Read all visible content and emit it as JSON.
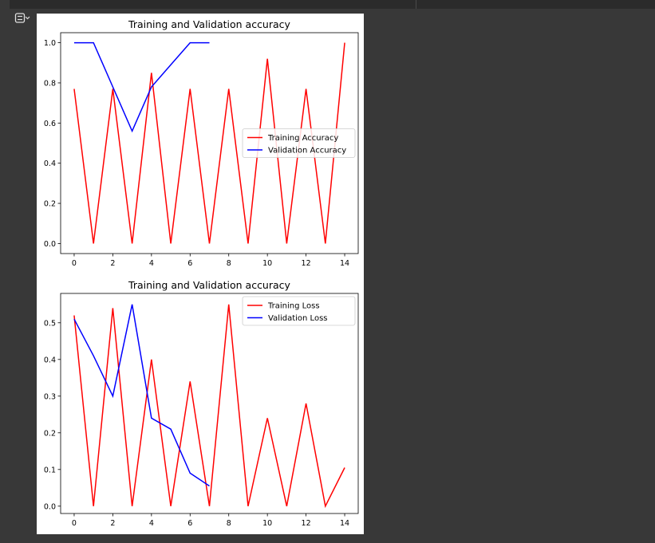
{
  "colors": {
    "background": "#383838",
    "training": "#ff0000",
    "validation": "#0000ff"
  },
  "output_toggle_icon": "output-collapse-icon",
  "chart_data": [
    {
      "type": "line",
      "title": "Training and Validation accuracy",
      "xlabel": "",
      "ylabel": "",
      "xlim": [
        -0.7,
        14.7
      ],
      "ylim": [
        -0.05,
        1.05
      ],
      "xticks": [
        "0",
        "2",
        "4",
        "6",
        "8",
        "10",
        "12",
        "14"
      ],
      "yticks": [
        "0.0",
        "0.2",
        "0.4",
        "0.6",
        "0.8",
        "1.0"
      ],
      "grid": false,
      "legend_position": "center-right",
      "series": [
        {
          "name": "Training Accuracy",
          "color": "#ff0000",
          "x": [
            0,
            1,
            2,
            3,
            4,
            5,
            6,
            7,
            8,
            9,
            10,
            11,
            12,
            13,
            14
          ],
          "y": [
            0.77,
            0.0,
            0.77,
            0.0,
            0.85,
            0.0,
            0.77,
            0.0,
            0.77,
            0.0,
            0.92,
            0.0,
            0.77,
            0.0,
            1.0
          ]
        },
        {
          "name": "Validation Accuracy",
          "color": "#0000ff",
          "x": [
            0,
            1,
            2,
            3,
            4,
            5,
            6,
            7
          ],
          "y": [
            1.0,
            1.0,
            0.78,
            0.56,
            0.78,
            0.89,
            1.0,
            1.0
          ]
        }
      ]
    },
    {
      "type": "line",
      "title": "Training and Validation accuracy",
      "xlabel": "",
      "ylabel": "",
      "xlim": [
        -0.7,
        14.7
      ],
      "ylim": [
        -0.02,
        0.58
      ],
      "xticks": [
        "0",
        "2",
        "4",
        "6",
        "8",
        "10",
        "12",
        "14"
      ],
      "yticks": [
        "0.0",
        "0.1",
        "0.2",
        "0.3",
        "0.4",
        "0.5"
      ],
      "grid": false,
      "legend_position": "top-right",
      "series": [
        {
          "name": "Training Loss",
          "color": "#ff0000",
          "x": [
            0,
            1,
            2,
            3,
            4,
            5,
            6,
            7,
            8,
            9,
            10,
            11,
            12,
            13,
            14
          ],
          "y": [
            0.52,
            0.0,
            0.54,
            0.0,
            0.4,
            0.0,
            0.34,
            0.0,
            0.55,
            0.0,
            0.24,
            0.0,
            0.28,
            0.0,
            0.105
          ]
        },
        {
          "name": "Validation Loss",
          "color": "#0000ff",
          "x": [
            0,
            1,
            2,
            3,
            4,
            5,
            6,
            7
          ],
          "y": [
            0.51,
            0.41,
            0.3,
            0.55,
            0.24,
            0.21,
            0.09,
            0.055
          ]
        }
      ]
    }
  ]
}
